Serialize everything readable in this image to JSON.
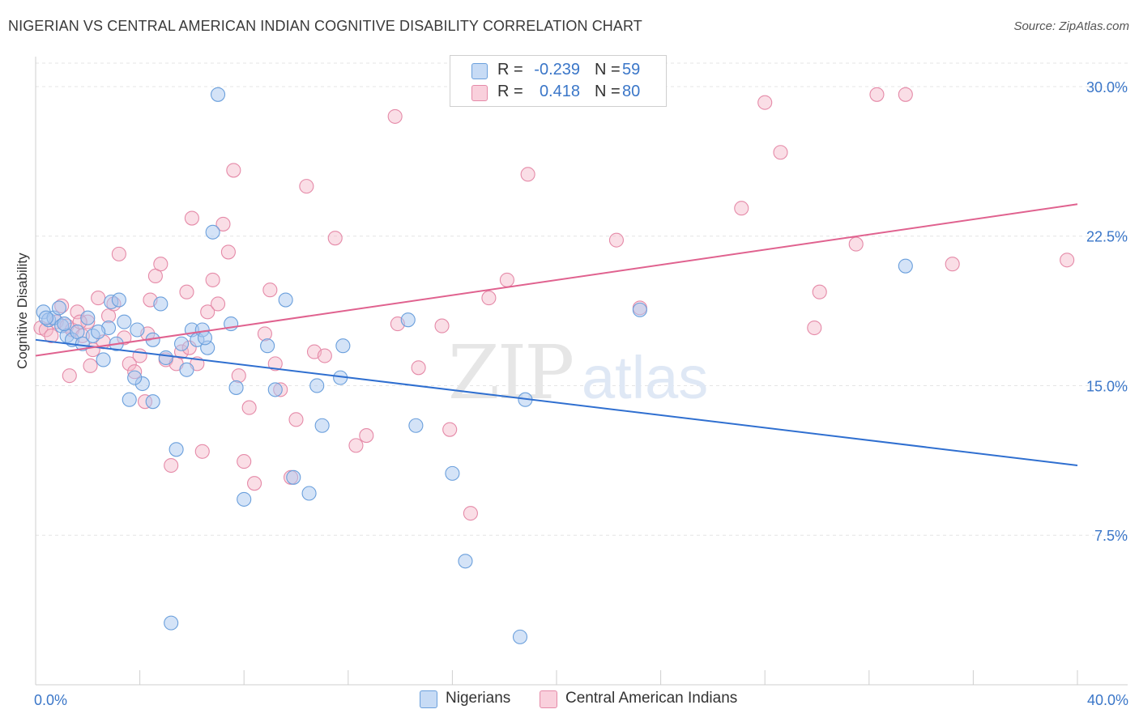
{
  "title": "NIGERIAN VS CENTRAL AMERICAN INDIAN COGNITIVE DISABILITY CORRELATION CHART",
  "source": "Source: ZipAtlas.com",
  "watermark": {
    "zip": "ZIP",
    "atlas": "atlas"
  },
  "legend": {
    "rows": [
      {
        "r_label": "R =",
        "r_value": "-0.239",
        "n_label": "N =",
        "n_value": "59",
        "color": "#a9c8f0"
      },
      {
        "r_label": "R =",
        "r_value": "0.418",
        "n_label": "N =",
        "n_value": "80",
        "color": "#f5b5c8"
      }
    ]
  },
  "bottom_legend": {
    "items": [
      {
        "label": "Nigerians"
      },
      {
        "label": "Central American Indians"
      }
    ]
  },
  "chart_data": {
    "type": "scatter",
    "xlabel": "",
    "ylabel": "Cognitive Disability",
    "xlim": [
      0,
      40
    ],
    "ylim": [
      0,
      31.5
    ],
    "x_tick_labels": [
      "0.0%",
      "40.0%"
    ],
    "y_ticks": [
      7.5,
      15.0,
      22.5,
      30.0
    ],
    "y_tick_labels": [
      "7.5%",
      "15.0%",
      "22.5%",
      "30.0%"
    ],
    "grid": true,
    "colors": {
      "nigerians_fill": "#a9c8f0",
      "nigerians_stroke": "#6a9fdc",
      "nigerians_line": "#2f6fd0",
      "cai_fill": "#f5b5c8",
      "cai_stroke": "#e58aa8",
      "cai_line": "#e0628f",
      "tick_label": "#3a76c8"
    },
    "series": [
      {
        "name": "Nigerians",
        "trend": {
          "x": [
            0,
            40
          ],
          "y": [
            17.3,
            11.0
          ]
        },
        "points": [
          [
            0.3,
            18.7
          ],
          [
            0.5,
            18.3
          ],
          [
            0.7,
            18.4
          ],
          [
            0.9,
            18.9
          ],
          [
            1.0,
            18.0
          ],
          [
            1.2,
            17.5
          ],
          [
            1.4,
            17.3
          ],
          [
            1.6,
            17.7
          ],
          [
            1.8,
            17.1
          ],
          [
            2.0,
            18.4
          ],
          [
            2.2,
            17.5
          ],
          [
            2.6,
            16.3
          ],
          [
            2.9,
            19.2
          ],
          [
            3.1,
            17.1
          ],
          [
            3.4,
            18.2
          ],
          [
            3.6,
            14.3
          ],
          [
            3.9,
            17.8
          ],
          [
            4.1,
            15.1
          ],
          [
            4.5,
            17.3
          ],
          [
            4.8,
            19.1
          ],
          [
            5.0,
            16.4
          ],
          [
            5.4,
            11.8
          ],
          [
            5.6,
            17.1
          ],
          [
            5.8,
            15.8
          ],
          [
            6.0,
            17.8
          ],
          [
            6.2,
            17.3
          ],
          [
            6.4,
            17.8
          ],
          [
            6.6,
            16.9
          ],
          [
            6.8,
            22.7
          ],
          [
            7.0,
            29.6
          ],
          [
            7.5,
            18.1
          ],
          [
            7.7,
            14.9
          ],
          [
            8.0,
            9.3
          ],
          [
            8.9,
            17.0
          ],
          [
            9.2,
            14.8
          ],
          [
            9.6,
            19.3
          ],
          [
            9.9,
            10.4
          ],
          [
            10.5,
            9.6
          ],
          [
            10.8,
            15.0
          ],
          [
            11.0,
            13.0
          ],
          [
            11.7,
            15.4
          ],
          [
            11.8,
            17.0
          ],
          [
            14.3,
            18.3
          ],
          [
            14.6,
            13.0
          ],
          [
            16.0,
            10.6
          ],
          [
            16.5,
            6.2
          ],
          [
            18.6,
            2.4
          ],
          [
            18.8,
            14.3
          ],
          [
            23.2,
            18.8
          ],
          [
            33.4,
            21.0
          ],
          [
            0.4,
            18.4
          ],
          [
            1.1,
            18.1
          ],
          [
            2.8,
            17.9
          ],
          [
            3.8,
            15.4
          ],
          [
            5.2,
            3.1
          ],
          [
            4.5,
            14.2
          ],
          [
            2.4,
            17.7
          ],
          [
            6.5,
            17.4
          ],
          [
            3.2,
            19.3
          ]
        ]
      },
      {
        "name": "Central American Indians",
        "trend": {
          "x": [
            0,
            40
          ],
          "y": [
            16.5,
            24.1
          ]
        },
        "points": [
          [
            0.2,
            17.9
          ],
          [
            0.4,
            17.8
          ],
          [
            0.6,
            17.5
          ],
          [
            0.8,
            18.2
          ],
          [
            1.0,
            19.0
          ],
          [
            1.2,
            18.0
          ],
          [
            1.4,
            17.8
          ],
          [
            1.6,
            18.7
          ],
          [
            1.8,
            17.5
          ],
          [
            2.0,
            18.2
          ],
          [
            2.2,
            16.8
          ],
          [
            2.4,
            19.4
          ],
          [
            2.6,
            17.2
          ],
          [
            2.8,
            18.5
          ],
          [
            3.0,
            19.1
          ],
          [
            3.2,
            21.6
          ],
          [
            3.4,
            17.4
          ],
          [
            3.6,
            16.1
          ],
          [
            3.8,
            15.7
          ],
          [
            4.0,
            16.5
          ],
          [
            4.2,
            14.2
          ],
          [
            4.4,
            19.3
          ],
          [
            4.6,
            20.5
          ],
          [
            4.8,
            21.1
          ],
          [
            5.0,
            16.3
          ],
          [
            5.2,
            11.0
          ],
          [
            5.4,
            16.1
          ],
          [
            5.6,
            16.7
          ],
          [
            5.8,
            19.7
          ],
          [
            6.0,
            23.4
          ],
          [
            6.2,
            16.1
          ],
          [
            6.4,
            11.7
          ],
          [
            6.6,
            18.7
          ],
          [
            6.8,
            20.3
          ],
          [
            7.0,
            19.1
          ],
          [
            7.2,
            23.1
          ],
          [
            7.4,
            21.7
          ],
          [
            7.6,
            25.8
          ],
          [
            7.8,
            15.5
          ],
          [
            8.0,
            11.2
          ],
          [
            8.2,
            13.9
          ],
          [
            8.4,
            10.1
          ],
          [
            8.8,
            17.6
          ],
          [
            9.0,
            19.8
          ],
          [
            9.2,
            16.1
          ],
          [
            9.4,
            14.8
          ],
          [
            9.8,
            10.4
          ],
          [
            10.0,
            13.3
          ],
          [
            10.4,
            25.0
          ],
          [
            10.7,
            16.7
          ],
          [
            11.1,
            16.5
          ],
          [
            11.5,
            22.4
          ],
          [
            12.3,
            12.0
          ],
          [
            12.7,
            12.5
          ],
          [
            13.8,
            28.5
          ],
          [
            13.9,
            18.1
          ],
          [
            14.7,
            15.9
          ],
          [
            15.6,
            18.0
          ],
          [
            15.9,
            12.8
          ],
          [
            16.7,
            8.6
          ],
          [
            17.4,
            19.4
          ],
          [
            18.1,
            20.3
          ],
          [
            18.9,
            25.6
          ],
          [
            22.3,
            22.3
          ],
          [
            23.2,
            18.9
          ],
          [
            27.1,
            23.9
          ],
          [
            28.0,
            29.2
          ],
          [
            28.6,
            26.7
          ],
          [
            29.9,
            17.9
          ],
          [
            30.1,
            19.7
          ],
          [
            31.5,
            22.1
          ],
          [
            32.3,
            29.6
          ],
          [
            33.4,
            29.6
          ],
          [
            35.2,
            21.1
          ],
          [
            39.6,
            21.3
          ],
          [
            1.3,
            15.5
          ],
          [
            2.1,
            16.0
          ],
          [
            4.3,
            17.6
          ],
          [
            5.9,
            16.9
          ],
          [
            1.7,
            18.2
          ]
        ]
      }
    ]
  }
}
